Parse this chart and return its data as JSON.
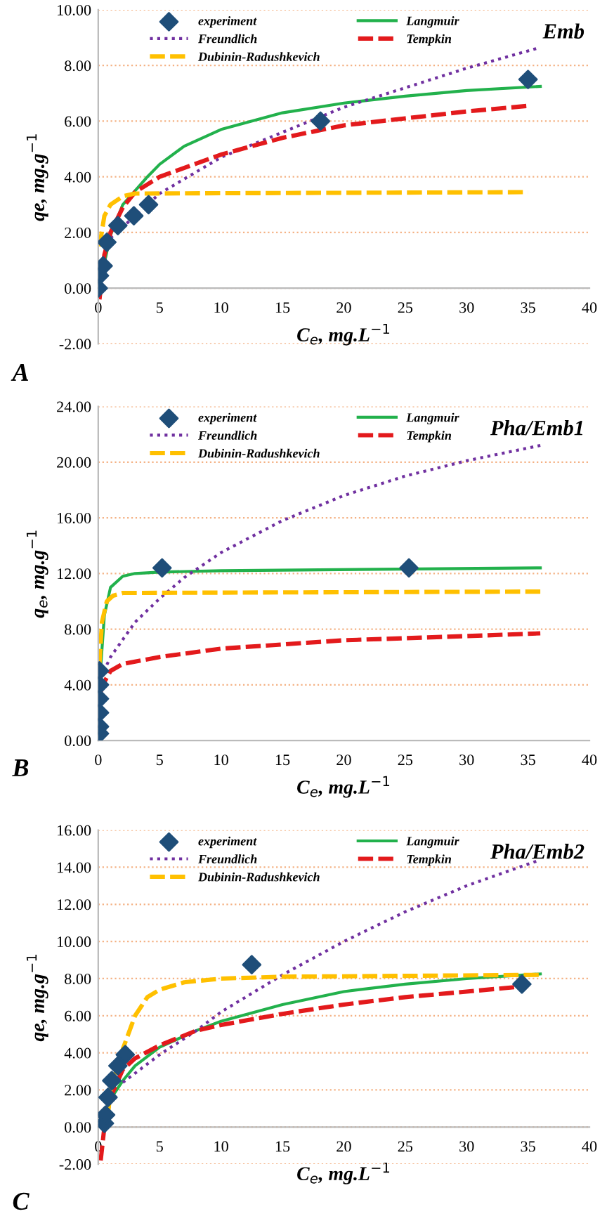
{
  "chart_data": [
    {
      "type": "line",
      "title": "Emb",
      "xlabel": "C$_{e}$, mg.L$^{−1}$",
      "ylabel": "qe, mg.g$^{−1}$",
      "annotations": [
        "A"
      ],
      "xlim": [
        0,
        40
      ],
      "xticks": [
        0,
        5,
        10,
        15,
        20,
        25,
        30,
        35,
        40
      ],
      "ylim": [
        -2,
        10
      ],
      "yticks": [
        {
          "value": -2,
          "label": "-2.00"
        },
        {
          "value": 0,
          "label": "0.00"
        },
        {
          "value": 2,
          "label": "2.00"
        },
        {
          "value": 4,
          "label": "4.00"
        },
        {
          "value": 6,
          "label": "6.00"
        },
        {
          "value": 8,
          "label": "8.00"
        },
        {
          "value": 10,
          "label": "10.00"
        }
      ],
      "grid": "y",
      "legend": "top",
      "series": [
        {
          "name": "experiment",
          "type": "scatter",
          "color": "#1f4e79",
          "marker": "diamond",
          "x": [
            0,
            0.1,
            0.4,
            0.7,
            1.6,
            2.9,
            4.1,
            18.1,
            35
          ],
          "values": [
            0,
            0.45,
            0.8,
            1.65,
            2.25,
            2.6,
            3.0,
            6.0,
            7.5
          ]
        },
        {
          "name": "Langmuir",
          "type": "line",
          "color": "#22b14c",
          "line_style": "solid",
          "x": [
            0.05,
            1,
            2,
            4,
            5,
            7,
            10,
            15,
            20,
            25,
            30,
            36
          ],
          "values": [
            0,
            1.9,
            3.0,
            4.0,
            4.45,
            5.1,
            5.7,
            6.3,
            6.65,
            6.9,
            7.1,
            7.25
          ]
        },
        {
          "name": "Freundlich",
          "type": "line",
          "color": "#7030a0",
          "line_style": "dotted",
          "x": [
            1,
            2,
            5,
            10,
            15,
            20,
            25,
            30,
            36
          ],
          "values": [
            1.8,
            2.2,
            3.4,
            4.7,
            5.6,
            6.5,
            7.2,
            7.9,
            8.65
          ]
        },
        {
          "name": "Tempkin",
          "type": "line",
          "color": "#e31a1c",
          "line_style": "dashed",
          "x": [
            0.1,
            0.5,
            1,
            2,
            3,
            5,
            10,
            15,
            20,
            25,
            30,
            35
          ],
          "values": [
            -0.4,
            1.2,
            2.0,
            2.9,
            3.45,
            4.0,
            4.8,
            5.4,
            5.85,
            6.1,
            6.35,
            6.55
          ]
        },
        {
          "name": "Dubinin-Radushkevich",
          "type": "line",
          "color": "#ffc000",
          "line_style": "dashed",
          "x": [
            0.1,
            0.5,
            1,
            2,
            3,
            35
          ],
          "values": [
            1.5,
            2.6,
            3.0,
            3.3,
            3.4,
            3.45
          ]
        }
      ]
    },
    {
      "type": "line",
      "title": "Pha/Emb1",
      "xlabel": "C$_{e}$, mg.L$^{−1}$",
      "ylabel": "q$_{e}$, mg.g$^{−1}$",
      "annotations": [
        "B"
      ],
      "xlim": [
        0,
        40
      ],
      "xticks": [
        0,
        5,
        10,
        15,
        20,
        25,
        30,
        35,
        40
      ],
      "ylim": [
        0,
        24
      ],
      "yticks": [
        {
          "value": 0,
          "label": "0.00"
        },
        {
          "value": 4,
          "label": "4.00"
        },
        {
          "value": 8,
          "label": "8.00"
        },
        {
          "value": 12,
          "label": "12.00"
        },
        {
          "value": 16,
          "label": "16.00"
        },
        {
          "value": 20,
          "label": "20.00"
        },
        {
          "value": 24,
          "label": "24.00"
        }
      ],
      "grid": "y",
      "legend": "top",
      "series": [
        {
          "name": "experiment",
          "type": "scatter",
          "color": "#1f4e79",
          "marker": "diamond",
          "x": [
            0.1,
            0.1,
            0.1,
            0.1,
            0.1,
            0.1,
            5.2,
            25.3
          ],
          "values": [
            0.5,
            1.0,
            2.0,
            3.0,
            4.0,
            5.0,
            12.4,
            12.4
          ]
        },
        {
          "name": "Langmuir",
          "type": "line",
          "color": "#22b14c",
          "line_style": "solid",
          "x": [
            0.1,
            0.5,
            1,
            2,
            3,
            5,
            10,
            36
          ],
          "values": [
            4,
            9,
            11,
            11.8,
            12.0,
            12.1,
            12.2,
            12.4
          ]
        },
        {
          "name": "Freundlich",
          "type": "line",
          "color": "#7030a0",
          "line_style": "dotted",
          "x": [
            0.2,
            1,
            3,
            5,
            7,
            10,
            15,
            20,
            25,
            30,
            36
          ],
          "values": [
            4.5,
            6,
            8.5,
            10.2,
            11.7,
            13.5,
            15.8,
            17.6,
            19,
            20.1,
            21.2
          ]
        },
        {
          "name": "Tempkin",
          "type": "line",
          "color": "#e31a1c",
          "line_style": "dashed",
          "x": [
            0.2,
            0.5,
            1,
            2,
            5,
            10,
            20,
            30,
            36
          ],
          "values": [
            3.5,
            4.2,
            5,
            5.5,
            6.0,
            6.6,
            7.2,
            7.5,
            7.7
          ]
        },
        {
          "name": "Dubinin-Radushkevich",
          "type": "line",
          "color": "#ffc000",
          "line_style": "dashed",
          "x": [
            0.1,
            0.3,
            0.7,
            1.2,
            2,
            36
          ],
          "values": [
            5.5,
            8.5,
            10,
            10.4,
            10.6,
            10.7
          ]
        }
      ]
    },
    {
      "type": "line",
      "title": "Pha/Emb2",
      "xlabel": "C$_{e}$, mg.L$^{−1}$",
      "ylabel": "qe, mg.g$^{−1}$",
      "annotations": [
        "C"
      ],
      "xlim": [
        0,
        40
      ],
      "xticks": [
        0,
        5,
        10,
        15,
        20,
        25,
        30,
        35,
        40
      ],
      "ylim": [
        -2,
        16
      ],
      "yticks": [
        {
          "value": -2,
          "label": "-2.00"
        },
        {
          "value": 0,
          "label": "0.00"
        },
        {
          "value": 2,
          "label": "2.00"
        },
        {
          "value": 4,
          "label": "4.00"
        },
        {
          "value": 6,
          "label": "6.00"
        },
        {
          "value": 8,
          "label": "8.00"
        },
        {
          "value": 10,
          "label": "10.00"
        },
        {
          "value": 12,
          "label": "12.00"
        },
        {
          "value": 14,
          "label": "14.00"
        },
        {
          "value": 16,
          "label": "16.00"
        }
      ],
      "grid": "y",
      "legend": "top",
      "series": [
        {
          "name": "experiment",
          "type": "scatter",
          "color": "#1f4e79",
          "marker": "diamond",
          "x": [
            0.5,
            0.6,
            0.8,
            1.1,
            1.6,
            2.2,
            12.5,
            34.5
          ],
          "values": [
            0.2,
            0.65,
            1.6,
            2.5,
            3.3,
            3.9,
            8.75,
            7.7
          ]
        },
        {
          "name": "Langmuir",
          "type": "line",
          "color": "#22b14c",
          "line_style": "solid",
          "x": [
            0.5,
            1,
            2,
            3,
            5,
            8,
            10,
            15,
            20,
            25,
            30,
            36
          ],
          "values": [
            0.8,
            1.5,
            2.5,
            3.3,
            4.3,
            5.2,
            5.7,
            6.6,
            7.3,
            7.7,
            8.0,
            8.25
          ]
        },
        {
          "name": "Freundlich",
          "type": "line",
          "color": "#7030a0",
          "line_style": "dotted",
          "x": [
            2,
            5,
            8,
            10,
            15,
            20,
            25,
            30,
            36
          ],
          "values": [
            2.4,
            3.9,
            5.2,
            6.2,
            8.2,
            10.0,
            11.6,
            13.0,
            14.4
          ]
        },
        {
          "name": "Tempkin",
          "type": "line",
          "color": "#e31a1c",
          "line_style": "dashed",
          "x": [
            0.2,
            0.5,
            1,
            2,
            3,
            5,
            8,
            10,
            15,
            20,
            25,
            30,
            35
          ],
          "values": [
            -1.8,
            0,
            1.6,
            3.1,
            3.7,
            4.4,
            5.2,
            5.5,
            6.1,
            6.6,
            7.0,
            7.3,
            7.6
          ]
        },
        {
          "name": "Dubinin-Radushkevich",
          "type": "line",
          "color": "#ffc000",
          "line_style": "dashed",
          "x": [
            0.8,
            1,
            2,
            3,
            4,
            5,
            7,
            10,
            15,
            36
          ],
          "values": [
            0.7,
            2.0,
            4.2,
            6.0,
            7.0,
            7.4,
            7.8,
            8.0,
            8.1,
            8.2
          ]
        }
      ]
    }
  ]
}
